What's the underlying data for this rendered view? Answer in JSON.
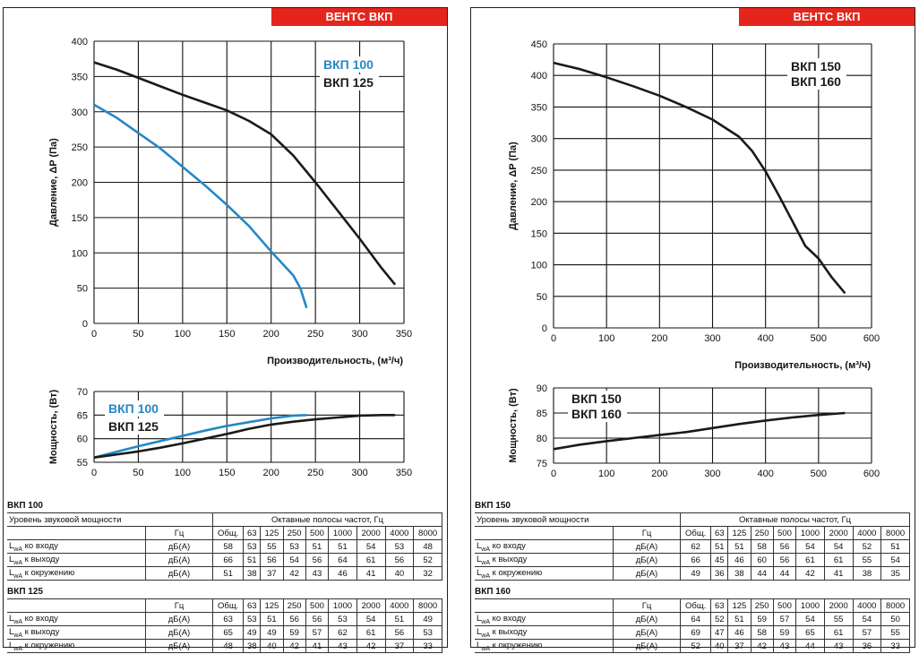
{
  "brand": "ВЕНТС ВКП",
  "colors": {
    "blue": "#2587c6",
    "black": "#1a1a1a",
    "brand_red": "#e5251b"
  },
  "panels": [
    {
      "pressure_chart": {
        "ylabel": "Давление, ΔP (Па)",
        "xlabel": "Производительность, (м³/ч)",
        "xlim": [
          0,
          350
        ],
        "ylim": [
          0,
          400
        ],
        "xticks": [
          0,
          50,
          100,
          150,
          200,
          250,
          300,
          350
        ],
        "yticks": [
          0,
          50,
          100,
          150,
          200,
          250,
          300,
          350,
          400
        ],
        "legend": [
          {
            "text": "ВКП 100",
            "color": "#2587c6"
          },
          {
            "text": "ВКП 125",
            "color": "#1a1a1a"
          }
        ]
      },
      "power_chart": {
        "ylabel": "Мощность, (Вт)",
        "xlim": [
          0,
          350
        ],
        "ylim": [
          55,
          70
        ],
        "xticks": [
          0,
          50,
          100,
          150,
          200,
          250,
          300,
          350
        ],
        "yticks": [
          55,
          60,
          65,
          70
        ],
        "legend": [
          {
            "text": "ВКП 100",
            "color": "#2587c6"
          },
          {
            "text": "ВКП 125",
            "color": "#1a1a1a"
          }
        ]
      },
      "tables": [
        {
          "title": "ВКП 100",
          "top_label": "Уровень звуковой мощности",
          "bands_caption": "Октавные полосы частот, Гц",
          "hz": "Гц",
          "cols": [
            "Общ.",
            "63",
            "125",
            "250",
            "500",
            "1000",
            "2000",
            "4000",
            "8000"
          ],
          "rows": [
            {
              "label": "LwA ко входу",
              "unit": "дБ(А)",
              "values": [
                "58",
                "53",
                "55",
                "53",
                "51",
                "51",
                "54",
                "53",
                "48"
              ]
            },
            {
              "label": "LwA к выходу",
              "unit": "дБ(А)",
              "values": [
                "66",
                "51",
                "56",
                "54",
                "56",
                "64",
                "61",
                "56",
                "52"
              ]
            },
            {
              "label": "LwA к окружению",
              "unit": "дБ(А)",
              "values": [
                "51",
                "38",
                "37",
                "42",
                "43",
                "46",
                "41",
                "40",
                "32"
              ]
            }
          ]
        },
        {
          "title": "ВКП 125",
          "hz": "Гц",
          "cols": [
            "Общ.",
            "63",
            "125",
            "250",
            "500",
            "1000",
            "2000",
            "4000",
            "8000"
          ],
          "rows": [
            {
              "label": "LwA ко входу",
              "unit": "дБ(А)",
              "values": [
                "63",
                "53",
                "51",
                "56",
                "56",
                "53",
                "54",
                "51",
                "49"
              ]
            },
            {
              "label": "LwA к выходу",
              "unit": "дБ(А)",
              "values": [
                "65",
                "49",
                "49",
                "59",
                "57",
                "62",
                "61",
                "56",
                "53"
              ]
            },
            {
              "label": "LwA к окружению",
              "unit": "дБ(А)",
              "values": [
                "48",
                "38",
                "40",
                "42",
                "41",
                "43",
                "42",
                "37",
                "33"
              ]
            }
          ]
        }
      ]
    },
    {
      "pressure_chart": {
        "ylabel": "Давление, ΔP (Па)",
        "xlabel": "Производительность, (м³/ч)",
        "xlim": [
          0,
          600
        ],
        "ylim": [
          0,
          450
        ],
        "xticks": [
          0,
          100,
          200,
          300,
          400,
          500,
          600
        ],
        "yticks": [
          0,
          50,
          100,
          150,
          200,
          250,
          300,
          350,
          400,
          450
        ],
        "legend": [
          {
            "text": "ВКП 150",
            "color": "#1a1a1a"
          },
          {
            "text": "ВКП 160",
            "color": "#1a1a1a"
          }
        ]
      },
      "power_chart": {
        "ylabel": "Мощность, (Вт)",
        "xlim": [
          0,
          600
        ],
        "ylim": [
          75,
          90
        ],
        "xticks": [
          0,
          100,
          200,
          300,
          400,
          500,
          600
        ],
        "yticks": [
          75,
          80,
          85,
          90
        ],
        "legend": [
          {
            "text": "ВКП 150",
            "color": "#1a1a1a"
          },
          {
            "text": "ВКП 160",
            "color": "#1a1a1a"
          }
        ]
      },
      "tables": [
        {
          "title": "ВКП 150",
          "top_label": "Уровень звуковой мощности",
          "bands_caption": "Октавные полосы частот, Гц",
          "hz": "Гц",
          "cols": [
            "Общ.",
            "63",
            "125",
            "250",
            "500",
            "1000",
            "2000",
            "4000",
            "8000"
          ],
          "rows": [
            {
              "label": "LwA ко входу",
              "unit": "дБ(А)",
              "values": [
                "62",
                "51",
                "51",
                "58",
                "56",
                "54",
                "54",
                "52",
                "51"
              ]
            },
            {
              "label": "LwA к выходу",
              "unit": "дБ(А)",
              "values": [
                "66",
                "45",
                "46",
                "60",
                "56",
                "61",
                "61",
                "55",
                "54"
              ]
            },
            {
              "label": "LwA к окружению",
              "unit": "дБ(А)",
              "values": [
                "49",
                "36",
                "38",
                "44",
                "44",
                "42",
                "41",
                "38",
                "35"
              ]
            }
          ]
        },
        {
          "title": "ВКП 160",
          "hz": "Гц",
          "cols": [
            "Общ.",
            "63",
            "125",
            "250",
            "500",
            "1000",
            "2000",
            "4000",
            "8000"
          ],
          "rows": [
            {
              "label": "LwA ко входу",
              "unit": "дБ(А)",
              "values": [
                "64",
                "52",
                "51",
                "59",
                "57",
                "54",
                "55",
                "54",
                "50"
              ]
            },
            {
              "label": "LwA к выходу",
              "unit": "дБ(А)",
              "values": [
                "69",
                "47",
                "46",
                "58",
                "59",
                "65",
                "61",
                "57",
                "55"
              ]
            },
            {
              "label": "LwA к окружению",
              "unit": "дБ(А)",
              "values": [
                "52",
                "40",
                "37",
                "42",
                "43",
                "44",
                "43",
                "36",
                "33"
              ]
            }
          ]
        }
      ]
    }
  ],
  "chart_data": [
    {
      "type": "line",
      "ylabel": "Давление, ΔP (Па)",
      "xlabel": "Производительность, (м³/ч)",
      "xlim": [
        0,
        350
      ],
      "ylim": [
        0,
        400
      ],
      "grid": true,
      "legend": "top-right",
      "series": [
        {
          "name": "ВКП 100",
          "color": "#2587c6",
          "x": [
            0,
            25,
            50,
            75,
            100,
            125,
            150,
            175,
            200,
            225,
            233,
            240
          ],
          "y": [
            310,
            292,
            270,
            248,
            222,
            196,
            168,
            138,
            102,
            68,
            50,
            22
          ]
        },
        {
          "name": "ВКП 125",
          "color": "#1a1a1a",
          "x": [
            0,
            25,
            50,
            75,
            100,
            125,
            150,
            175,
            200,
            225,
            250,
            275,
            300,
            325,
            340
          ],
          "y": [
            370,
            360,
            348,
            336,
            324,
            313,
            302,
            287,
            268,
            238,
            200,
            160,
            120,
            78,
            55
          ]
        }
      ]
    },
    {
      "type": "line",
      "ylabel": "Мощность, (Вт)",
      "xlim": [
        0,
        350
      ],
      "ylim": [
        55,
        70
      ],
      "grid": true,
      "legend": "top-left",
      "series": [
        {
          "name": "ВКП 100",
          "color": "#2587c6",
          "x": [
            0,
            25,
            50,
            75,
            100,
            125,
            150,
            175,
            200,
            225,
            240
          ],
          "y": [
            56,
            57.2,
            58.4,
            59.5,
            60.6,
            61.7,
            62.7,
            63.5,
            64.3,
            64.9,
            65
          ]
        },
        {
          "name": "ВКП 125",
          "color": "#1a1a1a",
          "x": [
            0,
            50,
            75,
            100,
            125,
            150,
            175,
            200,
            225,
            250,
            275,
            300,
            325,
            340
          ],
          "y": [
            56,
            57.3,
            58.1,
            59,
            60,
            61,
            62.1,
            63,
            63.6,
            64.1,
            64.5,
            64.9,
            65,
            65
          ]
        }
      ]
    },
    {
      "type": "line",
      "ylabel": "Давление, ΔP (Па)",
      "xlabel": "Производительность, (м³/ч)",
      "xlim": [
        0,
        600
      ],
      "ylim": [
        0,
        450
      ],
      "grid": true,
      "legend": "top-right",
      "series": [
        {
          "name": "ВКП 150 / ВКП 160",
          "color": "#1a1a1a",
          "x": [
            0,
            50,
            100,
            150,
            200,
            250,
            300,
            350,
            375,
            400,
            425,
            450,
            475,
            500,
            525,
            550
          ],
          "y": [
            420,
            410,
            397,
            383,
            368,
            350,
            330,
            303,
            280,
            248,
            210,
            170,
            130,
            110,
            80,
            55
          ]
        }
      ]
    },
    {
      "type": "line",
      "ylabel": "Мощность, (Вт)",
      "xlim": [
        0,
        600
      ],
      "ylim": [
        75,
        90
      ],
      "grid": true,
      "legend": "top-left",
      "series": [
        {
          "name": "ВКП 150 / ВКП 160",
          "color": "#1a1a1a",
          "x": [
            0,
            50,
            100,
            150,
            200,
            250,
            300,
            350,
            400,
            450,
            500,
            550
          ],
          "y": [
            77.8,
            78.7,
            79.4,
            80,
            80.6,
            81.2,
            82,
            82.8,
            83.5,
            84.1,
            84.6,
            85
          ]
        }
      ]
    }
  ]
}
